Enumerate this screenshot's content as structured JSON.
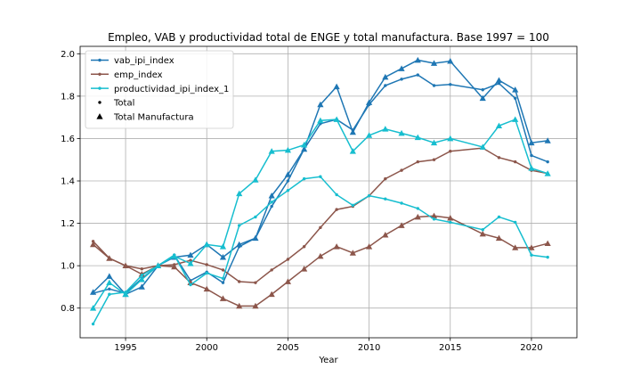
{
  "chart_data": {
    "type": "line",
    "title": "Empleo, VAB y productividad total de ENGE y total manufactura. Base 1997 = 100",
    "xlabel": "Year",
    "ylabel": "",
    "xlim": [
      1992.2,
      2022.8
    ],
    "ylim": [
      0.66,
      2.035
    ],
    "xticks": [
      1995,
      2000,
      2005,
      2010,
      2015,
      2020
    ],
    "yticks": [
      0.8,
      1.0,
      1.2,
      1.4,
      1.6,
      1.8,
      2.0
    ],
    "xtick_labels": [
      "1995",
      "2000",
      "2005",
      "2010",
      "2015",
      "2020"
    ],
    "ytick_labels": [
      "0.8",
      "1.0",
      "1.2",
      "1.4",
      "1.6",
      "1.8",
      "2.0"
    ],
    "grid": true,
    "legend_position": "top-left",
    "legend": {
      "series_entries": [
        {
          "label": "vab_ipi_index",
          "color": "#1f77b4"
        },
        {
          "label": "emp_index",
          "color": "#8c564b"
        },
        {
          "label": "productividad_ipi_index_1",
          "color": "#17becf"
        }
      ],
      "marker_entries": [
        {
          "label": "Total",
          "marker": "dot"
        },
        {
          "label": "Total Manufactura",
          "marker": "triangle"
        }
      ]
    },
    "series": [
      {
        "color": "#1f77b4",
        "group": "Total",
        "marker": "dot",
        "x": [
          1993,
          1994,
          1995,
          1996,
          1997,
          1998,
          1999,
          2000,
          2001,
          2002,
          2003,
          2004,
          2005,
          2006,
          2007,
          2008,
          2009,
          2010,
          2011,
          2012,
          2013,
          2014,
          2015,
          2017,
          2018,
          2019,
          2020,
          2021
        ],
        "y": [
          0.87,
          0.89,
          0.87,
          0.94,
          1.0,
          1.05,
          0.93,
          0.97,
          0.92,
          1.09,
          1.13,
          1.28,
          1.4,
          1.55,
          1.67,
          1.69,
          1.64,
          1.76,
          1.85,
          1.88,
          1.9,
          1.85,
          1.855,
          1.83,
          1.86,
          1.79,
          1.52,
          1.49
        ]
      },
      {
        "color": "#1f77b4",
        "group": "Total Manufactura",
        "marker": "triangle",
        "x": [
          1993,
          1994,
          1995,
          1996,
          1997,
          1998,
          1999,
          2000,
          2001,
          2002,
          2003,
          2004,
          2005,
          2006,
          2007,
          2008,
          2009,
          2010,
          2011,
          2012,
          2013,
          2014,
          2015,
          2017,
          2018,
          2019,
          2020,
          2021
        ],
        "y": [
          0.875,
          0.95,
          0.865,
          0.9,
          1.0,
          1.04,
          1.05,
          1.1,
          1.04,
          1.1,
          1.13,
          1.33,
          1.43,
          1.55,
          1.76,
          1.845,
          1.63,
          1.77,
          1.89,
          1.93,
          1.97,
          1.955,
          1.965,
          1.79,
          1.875,
          1.83,
          1.58,
          1.59
        ]
      },
      {
        "color": "#8c564b",
        "group": "Total",
        "marker": "dot",
        "x": [
          1993,
          1994,
          1995,
          1996,
          1997,
          1998,
          1999,
          2000,
          2001,
          2002,
          2003,
          2004,
          2005,
          2006,
          2007,
          2008,
          2009,
          2010,
          2011,
          2012,
          2013,
          2014,
          2015,
          2017,
          2018,
          2019,
          2020,
          2021
        ],
        "y": [
          1.115,
          1.035,
          1.0,
          0.985,
          1.0,
          1.005,
          1.025,
          1.005,
          0.98,
          0.925,
          0.92,
          0.98,
          1.03,
          1.09,
          1.18,
          1.265,
          1.28,
          1.33,
          1.41,
          1.45,
          1.49,
          1.5,
          1.54,
          1.555,
          1.51,
          1.49,
          1.45,
          1.435
        ]
      },
      {
        "color": "#8c564b",
        "group": "Total Manufactura",
        "marker": "triangle",
        "x": [
          1993,
          1994,
          1995,
          1996,
          1997,
          1998,
          1999,
          2000,
          2001,
          2002,
          2003,
          2004,
          2005,
          2006,
          2007,
          2008,
          2009,
          2010,
          2011,
          2012,
          2013,
          2014,
          2015,
          2017,
          2018,
          2019,
          2020,
          2021
        ],
        "y": [
          1.1,
          1.035,
          1.0,
          0.96,
          1.0,
          0.995,
          0.92,
          0.89,
          0.845,
          0.81,
          0.81,
          0.865,
          0.925,
          0.985,
          1.045,
          1.09,
          1.06,
          1.09,
          1.145,
          1.19,
          1.23,
          1.235,
          1.225,
          1.15,
          1.13,
          1.085,
          1.085,
          1.105
        ]
      },
      {
        "color": "#17becf",
        "group": "Total",
        "marker": "dot",
        "x": [
          1993,
          1994,
          1995,
          1996,
          1997,
          1998,
          1999,
          2000,
          2001,
          2002,
          2003,
          2004,
          2005,
          2006,
          2007,
          2008,
          2009,
          2010,
          2011,
          2012,
          2013,
          2014,
          2015,
          2017,
          2018,
          2019,
          2020,
          2021
        ],
        "y": [
          0.725,
          0.865,
          0.875,
          0.955,
          1.0,
          1.05,
          0.91,
          0.965,
          0.94,
          1.19,
          1.23,
          1.3,
          1.355,
          1.41,
          1.42,
          1.335,
          1.285,
          1.33,
          1.315,
          1.295,
          1.27,
          1.22,
          1.205,
          1.17,
          1.23,
          1.205,
          1.05,
          1.04
        ]
      },
      {
        "color": "#17becf",
        "group": "Total Manufactura",
        "marker": "triangle",
        "x": [
          1993,
          1994,
          1995,
          1996,
          1997,
          1998,
          1999,
          2000,
          2001,
          2002,
          2003,
          2004,
          2005,
          2006,
          2007,
          2008,
          2009,
          2010,
          2011,
          2012,
          2013,
          2014,
          2015,
          2017,
          2018,
          2019,
          2020,
          2021
        ],
        "y": [
          0.8,
          0.92,
          0.865,
          0.935,
          1.0,
          1.045,
          1.01,
          1.1,
          1.09,
          1.34,
          1.405,
          1.54,
          1.545,
          1.57,
          1.685,
          1.69,
          1.54,
          1.615,
          1.645,
          1.625,
          1.605,
          1.58,
          1.6,
          1.56,
          1.66,
          1.69,
          1.46,
          1.435
        ]
      }
    ]
  }
}
